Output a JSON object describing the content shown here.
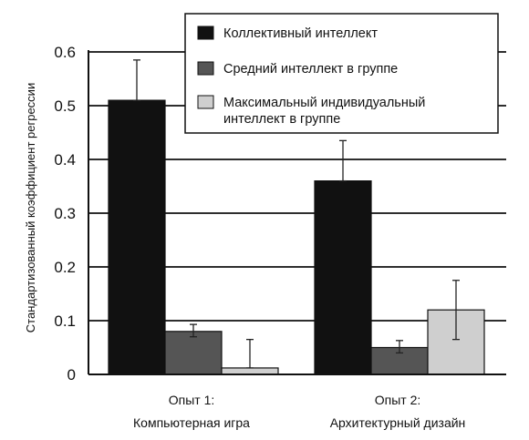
{
  "chart_data": {
    "type": "bar",
    "ylabel": "Стандартизованный коэффициент регрессии",
    "ylim": [
      0,
      0.6
    ],
    "yticks": [
      "0",
      "0.1",
      "0.2",
      "0.3",
      "0.4",
      "0.5",
      "0.6"
    ],
    "grid": "horizontal",
    "legend_position": "top-right",
    "categories": [
      {
        "line1": "Опыт 1:",
        "line2": "Компьютерная игра"
      },
      {
        "line1": "Опыт 2:",
        "line2": "Архитектурный дизайн"
      }
    ],
    "series": [
      {
        "name": "Коллективный интеллект",
        "name_lines": [
          "Коллективный интеллект"
        ],
        "color": "#111111",
        "values": [
          0.51,
          0.36
        ],
        "err_low": [
          0.51,
          0.36
        ],
        "err_high": [
          0.585,
          0.435
        ]
      },
      {
        "name": "Средний интеллект в группе",
        "name_lines": [
          "Средний интеллект в группе"
        ],
        "color": "#555555",
        "values": [
          0.08,
          0.05
        ],
        "err_low": [
          0.07,
          0.04
        ],
        "err_high": [
          0.093,
          0.063
        ]
      },
      {
        "name": "Максимальный индивидуальный интеллект в группе",
        "name_lines": [
          "Максимальный индивидуальный",
          "интеллект в группе"
        ],
        "color": "#cfcfcf",
        "values": [
          0.012,
          0.12
        ],
        "err_low": [
          0.012,
          0.065
        ],
        "err_high": [
          0.065,
          0.175
        ]
      }
    ]
  }
}
